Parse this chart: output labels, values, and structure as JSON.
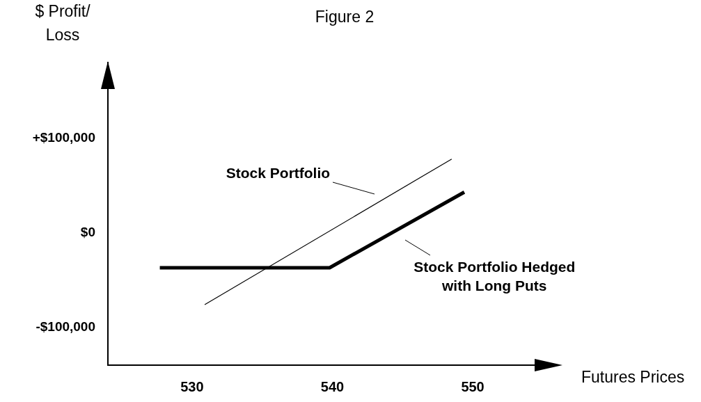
{
  "chart_data": {
    "type": "line",
    "title": "Figure 2",
    "ylabel": "$ Profit/ Loss",
    "xlabel": "Futures Prices",
    "xlim": [
      524,
      556
    ],
    "xticks": [
      530,
      540,
      550
    ],
    "ylim": [
      -140000,
      180000
    ],
    "yticks": [
      {
        "value": 100000,
        "label": "+$100,000"
      },
      {
        "value": 0,
        "label": "$0"
      },
      {
        "value": -100000,
        "label": "-$100,000"
      }
    ],
    "series": [
      {
        "name": "Stock Portfolio",
        "color": "#000000",
        "x": [
          530.9,
          548.5
        ],
        "values": [
          -76000,
          78000
        ]
      },
      {
        "name": "Stock Portfolio Hedged with Long Puts",
        "color": "#000000",
        "x": [
          527.7,
          539.8,
          549.4
        ],
        "values": [
          -37000,
          -37000,
          43000
        ]
      }
    ],
    "grid": false,
    "marker": "none",
    "line_style": "solid"
  }
}
